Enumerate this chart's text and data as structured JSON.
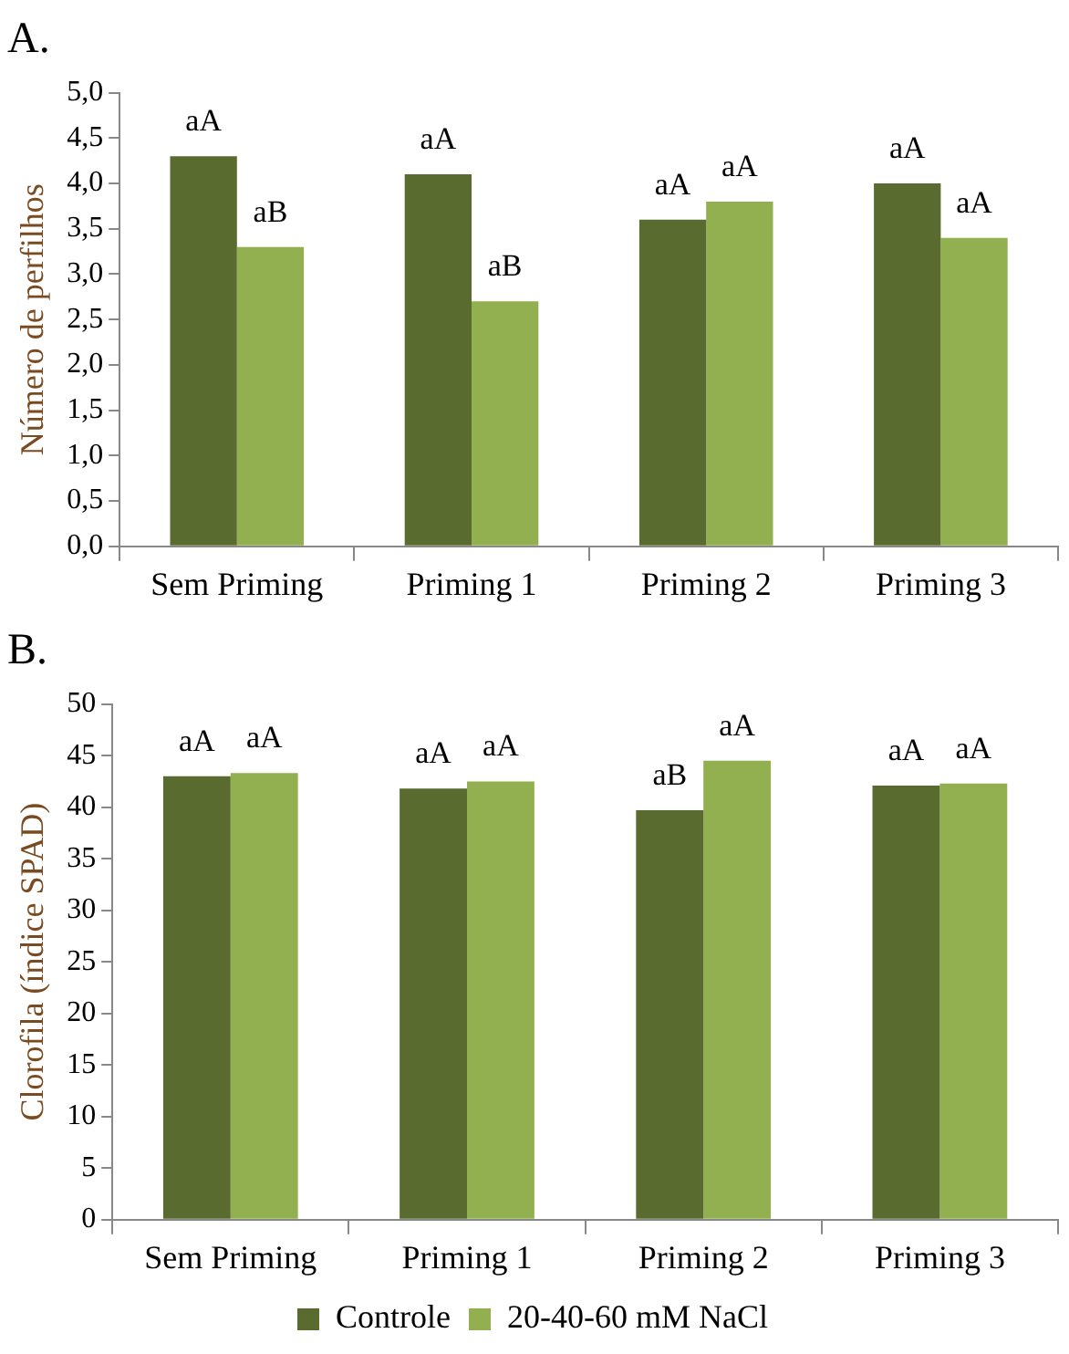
{
  "chart_data": [
    {
      "type": "bar",
      "title": "A.",
      "ylabel": "Número de perfilhos",
      "categories": [
        "Sem Priming",
        "Priming 1",
        "Priming 2",
        "Priming 3"
      ],
      "series": [
        {
          "color": "#5a6b30",
          "values": [
            4.3,
            4.1,
            3.6,
            4.0
          ],
          "value_labels": [
            "aA",
            "aA",
            "aA",
            "aA"
          ]
        },
        {
          "color": "#92b050",
          "values": [
            3.3,
            2.7,
            3.8,
            3.4
          ],
          "value_labels": [
            "aB",
            "aB",
            "aA",
            "aA"
          ]
        }
      ],
      "ylim": [
        0,
        5
      ],
      "yticks": [
        {
          "value": 0,
          "label": "0,0"
        },
        {
          "value": 0.5,
          "label": "0,5"
        },
        {
          "value": 1,
          "label": "1,0"
        },
        {
          "value": 1.5,
          "label": "1,5"
        },
        {
          "value": 2,
          "label": "2,0"
        },
        {
          "value": 2.5,
          "label": "2,5"
        },
        {
          "value": 3,
          "label": "3,0"
        },
        {
          "value": 3.5,
          "label": "3,5"
        },
        {
          "value": 4,
          "label": "4,0"
        },
        {
          "value": 4.5,
          "label": "4,5"
        },
        {
          "value": 5,
          "label": "5,0"
        }
      ],
      "grid": false,
      "legend": false
    },
    {
      "type": "bar",
      "title": "B.",
      "ylabel": "Clorofila (índice SPAD)",
      "categories": [
        "Sem Priming",
        "Priming 1",
        "Priming 2",
        "Priming 3"
      ],
      "series": [
        {
          "name": "Controle",
          "color": "#5a6b30",
          "values": [
            43,
            41.8,
            39.7,
            42.1
          ],
          "value_labels": [
            "aA",
            "aA",
            "aB",
            "aA"
          ]
        },
        {
          "name": "20-40-60 mM NaCl",
          "color": "#92b050",
          "values": [
            43.3,
            42.5,
            44.5,
            42.3
          ],
          "value_labels": [
            "aA",
            "aA",
            "aA",
            "aA"
          ]
        }
      ],
      "ylim": [
        0,
        50
      ],
      "yticks": [
        0,
        5,
        10,
        15,
        20,
        25,
        30,
        35,
        40,
        45,
        50
      ],
      "grid": false,
      "legend": "bottom"
    }
  ]
}
